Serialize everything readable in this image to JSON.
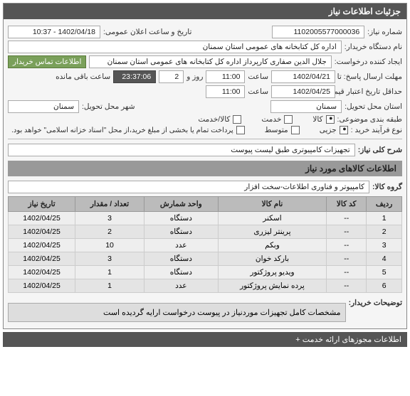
{
  "panel": {
    "title": "جزئیات اطلاعات نیاز"
  },
  "fields": {
    "reqno_label": "شماره نیاز:",
    "reqno": "1102005577000036",
    "pubdate_label": "تاریخ و ساعت اعلان عمومی:",
    "pubdate": "1402/04/18 - 10:37",
    "buyer_label": "نام دستگاه خریدار:",
    "buyer": "اداره کل کتابخانه های عمومی استان سمنان",
    "creator_label": "ایجاد کننده درخواست:",
    "creator": "جلال الدین صفاری کارپرداز اداره کل کتابخانه های عمومی استان سمنان",
    "contact_btn": "اطلاعات تماس خریدار",
    "deadline_label": "مهلت ارسال پاسخ: تا تاریخ:",
    "deadline_date": "1402/04/21",
    "time_label": "ساعت",
    "deadline_time": "11:00",
    "day_label": "روز و",
    "day_count": "2",
    "remain_time": "23:37:06",
    "remain_label": "ساعت باقی مانده",
    "validity_label": "حداقل تاریخ اعتبار قیمت: تا تاریخ:",
    "validity_date": "1402/04/25",
    "validity_time": "11:00",
    "province_label": "استان محل تحویل:",
    "province": "سمنان",
    "city_label": "شهر محل تحویل:",
    "city": "سمنان",
    "category_label": "طبقه بندی موضوعی:",
    "cat_goods": "کالا",
    "cat_service": "خدمت",
    "cat_both": "کالا/خدمت",
    "process_label": "نوع فرآیند خرید :",
    "proc_small": "جزیی",
    "proc_medium": "متوسط",
    "payment_note": "پرداخت تمام یا بخشی از مبلغ خرید،از محل \"اسناد خزانه اسلامی\" خواهد بود.",
    "summary_label": "شرح کلی نیاز:",
    "summary": "تجهیزات کامپیوتری طبق لیست پیوست"
  },
  "items_section": "اطلاعات کالاهای مورد نیاز",
  "group_label": "گروه کالا:",
  "group": "کامپیوتر و فناوری اطلاعات-سخت افزار",
  "table": {
    "headers": {
      "row": "ردیف",
      "code": "کد کالا",
      "name": "نام کالا",
      "unit": "واحد شمارش",
      "qty": "تعداد / مقدار",
      "date": "تاریخ نیاز"
    },
    "rows": [
      {
        "n": "1",
        "code": "--",
        "name": "اسکنر",
        "unit": "دستگاه",
        "qty": "3",
        "date": "1402/04/25"
      },
      {
        "n": "2",
        "code": "--",
        "name": "پرینتر لیزری",
        "unit": "دستگاه",
        "qty": "2",
        "date": "1402/04/25"
      },
      {
        "n": "3",
        "code": "--",
        "name": "وبکم",
        "unit": "عدد",
        "qty": "10",
        "date": "1402/04/25"
      },
      {
        "n": "4",
        "code": "--",
        "name": "بارکد خوان",
        "unit": "دستگاه",
        "qty": "3",
        "date": "1402/04/25"
      },
      {
        "n": "5",
        "code": "--",
        "name": "ویدیو پروژکتور",
        "unit": "دستگاه",
        "qty": "1",
        "date": "1402/04/25"
      },
      {
        "n": "6",
        "code": "--",
        "name": "پرده نمایش پروژکتور",
        "unit": "عدد",
        "qty": "1",
        "date": "1402/04/25"
      }
    ]
  },
  "buyer_notes_label": "توضیحات خریدار:",
  "buyer_notes": "مشخصات کامل تجهیزات موردنیاز در پیوست درخواست ارایه گردیده است",
  "footer": "اطلاعات مجوزهای ارائه خدمت +"
}
